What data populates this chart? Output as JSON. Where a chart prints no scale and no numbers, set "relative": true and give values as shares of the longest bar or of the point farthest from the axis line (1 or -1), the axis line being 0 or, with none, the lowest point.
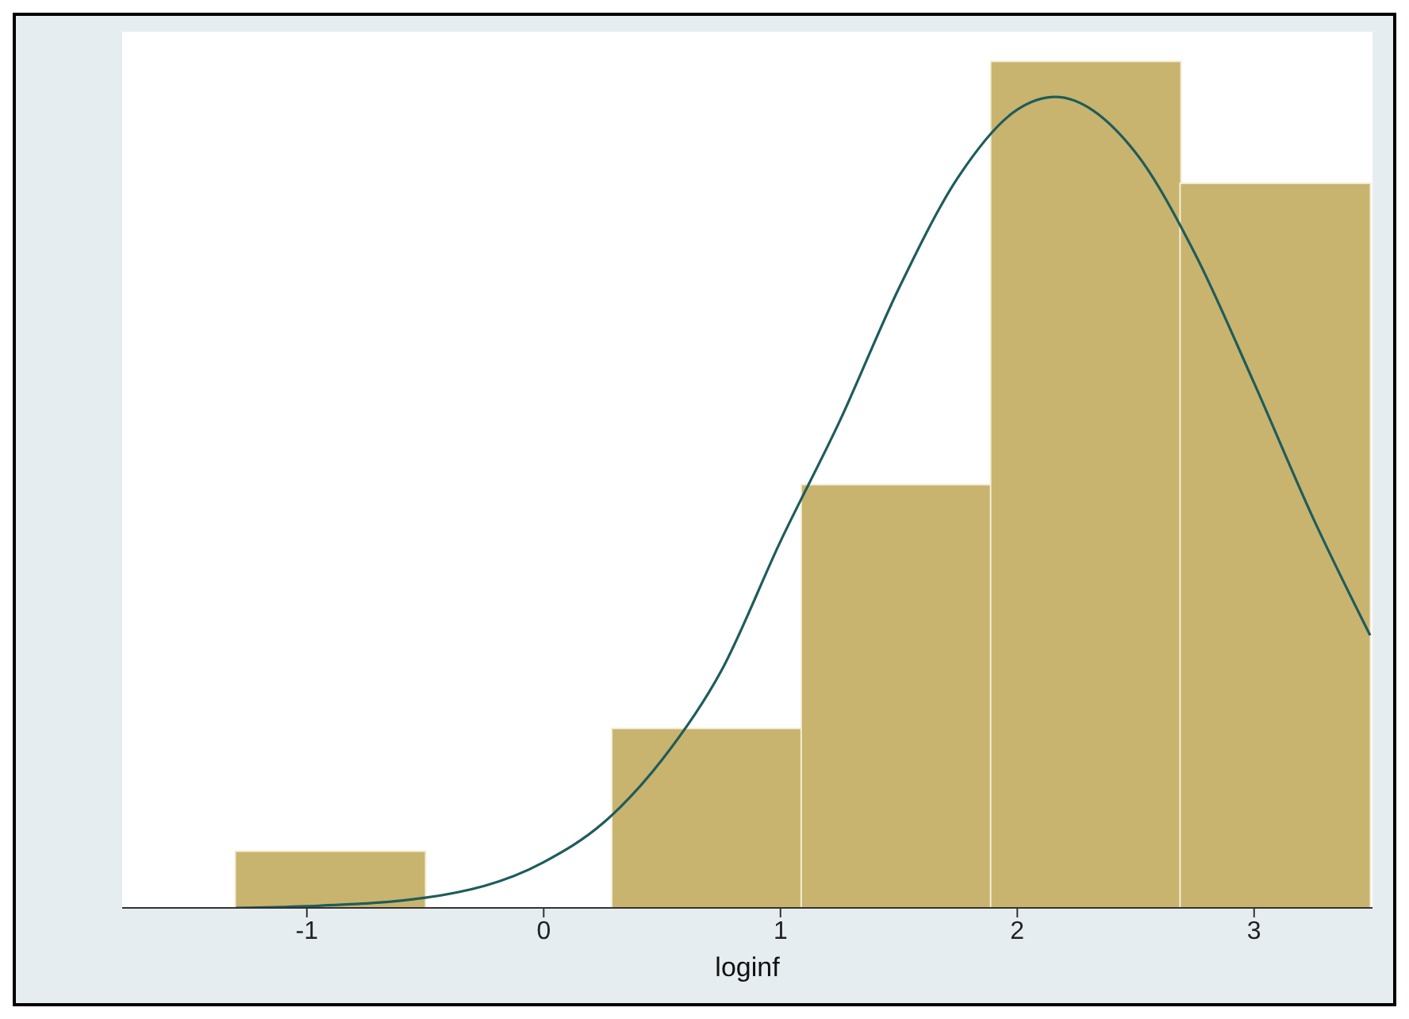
{
  "chart_data": {
    "type": "histogram",
    "xlabel": "loginf",
    "relative": true,
    "bins": [
      -1.3,
      -0.5,
      0.29,
      1.09,
      1.89,
      2.69,
      3.49
    ],
    "values": [
      0.067,
      0,
      0.212,
      0.5,
      1,
      0.856
    ],
    "color": "#c8b46e",
    "xlim": [
      -1.78,
      3.5
    ],
    "xticks": [
      -1,
      0,
      1,
      2,
      3
    ],
    "series": [
      {
        "type": "line",
        "color": "#1f5c5c",
        "x": [
          -1.3,
          -1,
          -0.5,
          0,
          0.25,
          0.5,
          0.75,
          1,
          1.25,
          1.5,
          1.75,
          2,
          2.16,
          2.5,
          2.75,
          3,
          3.25,
          3.49
        ],
        "values": [
          0,
          0.002,
          0.012,
          0.054,
          0.1,
          0.175,
          0.28,
          0.433,
          0.575,
          0.732,
          0.863,
          0.943,
          0.958,
          0.892,
          0.773,
          0.62,
          0.46,
          0.322
        ]
      }
    ]
  }
}
